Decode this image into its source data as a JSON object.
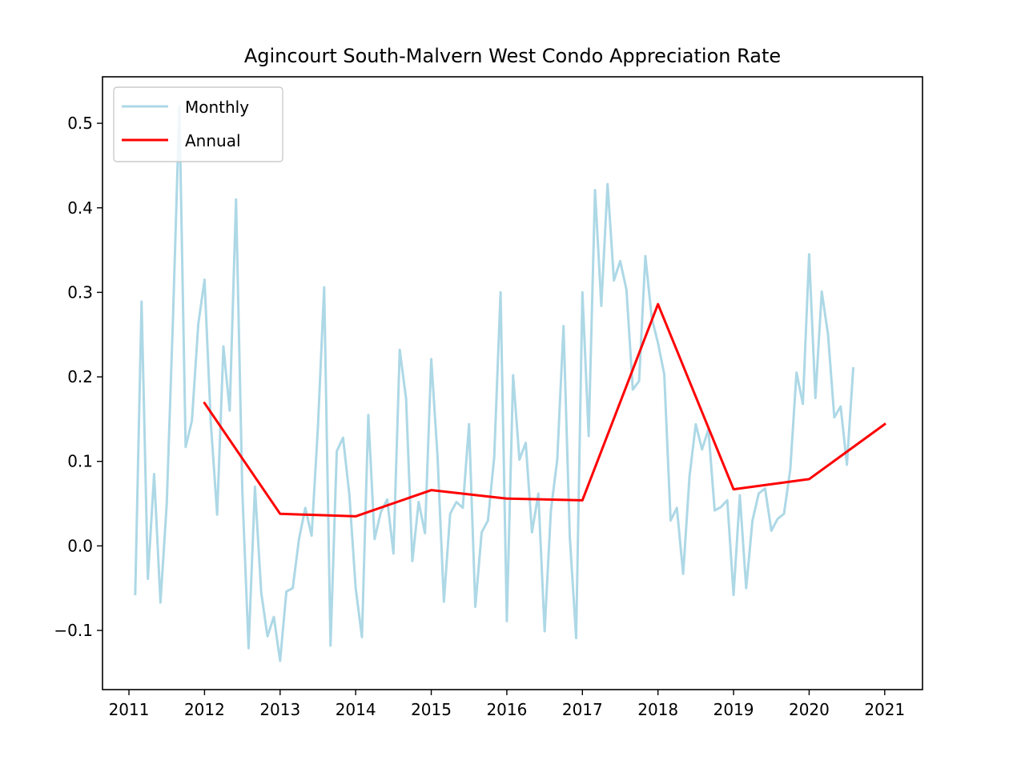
{
  "chart_data": {
    "type": "line",
    "title": "Agincourt South-Malvern West Condo Appreciation Rate",
    "xlabel": "",
    "ylabel": "",
    "xlim": [
      2010.65,
      2021.5
    ],
    "ylim": [
      -0.17,
      0.555
    ],
    "x_ticks": [
      2011,
      2012,
      2013,
      2014,
      2015,
      2016,
      2017,
      2018,
      2019,
      2020,
      2021
    ],
    "y_ticks": [
      -0.1,
      0.0,
      0.1,
      0.2,
      0.3,
      0.4,
      0.5
    ],
    "y_tick_labels": [
      "−0.1",
      "0.0",
      "0.1",
      "0.2",
      "0.3",
      "0.4",
      "0.5"
    ],
    "grid": false,
    "legend_position": "upper-left",
    "series": [
      {
        "name": "Monthly",
        "color": "#add8e6",
        "x": [
          2011.083,
          2011.167,
          2011.25,
          2011.333,
          2011.417,
          2011.5,
          2011.583,
          2011.667,
          2011.75,
          2011.833,
          2011.917,
          2012.0,
          2012.083,
          2012.167,
          2012.25,
          2012.333,
          2012.417,
          2012.5,
          2012.583,
          2012.667,
          2012.75,
          2012.833,
          2012.917,
          2013.0,
          2013.083,
          2013.167,
          2013.25,
          2013.333,
          2013.417,
          2013.5,
          2013.583,
          2013.667,
          2013.75,
          2013.833,
          2013.917,
          2014.0,
          2014.083,
          2014.167,
          2014.25,
          2014.333,
          2014.417,
          2014.5,
          2014.583,
          2014.667,
          2014.75,
          2014.833,
          2014.917,
          2015.0,
          2015.083,
          2015.167,
          2015.25,
          2015.333,
          2015.417,
          2015.5,
          2015.583,
          2015.667,
          2015.75,
          2015.833,
          2015.917,
          2016.0,
          2016.083,
          2016.167,
          2016.25,
          2016.333,
          2016.417,
          2016.5,
          2016.583,
          2016.667,
          2016.75,
          2016.833,
          2016.917,
          2017.0,
          2017.083,
          2017.167,
          2017.25,
          2017.333,
          2017.417,
          2017.5,
          2017.583,
          2017.667,
          2017.75,
          2017.833,
          2017.917,
          2018.0,
          2018.083,
          2018.167,
          2018.25,
          2018.333,
          2018.417,
          2018.5,
          2018.583,
          2018.667,
          2018.75,
          2018.833,
          2018.917,
          2019.0,
          2019.083,
          2019.167,
          2019.25,
          2019.333,
          2019.417,
          2019.5,
          2019.583,
          2019.667,
          2019.75,
          2019.833,
          2019.917,
          2020.0,
          2020.083,
          2020.167,
          2020.25,
          2020.333,
          2020.417,
          2020.5,
          2020.583
        ],
        "y": [
          -0.057,
          0.289,
          -0.039,
          0.085,
          -0.067,
          0.05,
          0.27,
          0.52,
          0.117,
          0.148,
          0.262,
          0.315,
          0.146,
          0.037,
          0.236,
          0.16,
          0.41,
          0.065,
          -0.121,
          0.07,
          -0.055,
          -0.107,
          -0.084,
          -0.136,
          -0.054,
          -0.05,
          0.008,
          0.045,
          0.012,
          0.14,
          0.306,
          -0.118,
          0.112,
          0.128,
          0.06,
          -0.05,
          -0.108,
          0.155,
          0.008,
          0.04,
          0.055,
          -0.009,
          0.232,
          0.174,
          -0.018,
          0.052,
          0.015,
          0.221,
          0.106,
          -0.066,
          0.038,
          0.052,
          0.045,
          0.144,
          -0.072,
          0.016,
          0.03,
          0.105,
          0.3,
          -0.089,
          0.202,
          0.102,
          0.122,
          0.016,
          0.062,
          -0.101,
          0.042,
          0.102,
          0.26,
          0.011,
          -0.109,
          0.3,
          0.13,
          0.421,
          0.284,
          0.428,
          0.314,
          0.337,
          0.303,
          0.185,
          0.195,
          0.343,
          0.27,
          0.24,
          0.203,
          0.03,
          0.045,
          -0.033,
          0.082,
          0.144,
          0.114,
          0.138,
          0.042,
          0.046,
          0.054,
          -0.058,
          0.06,
          -0.05,
          0.03,
          0.062,
          0.068,
          0.018,
          0.032,
          0.038,
          0.09,
          0.205,
          0.168,
          0.345,
          0.175,
          0.301,
          0.25,
          0.152,
          0.165,
          0.096,
          0.21
        ]
      },
      {
        "name": "Annual",
        "color": "#ff0000",
        "x": [
          2012,
          2013,
          2014,
          2015,
          2016,
          2017,
          2018,
          2019,
          2020,
          2021
        ],
        "y": [
          0.169,
          0.038,
          0.035,
          0.066,
          0.056,
          0.054,
          0.286,
          0.067,
          0.079,
          0.144
        ]
      }
    ]
  }
}
